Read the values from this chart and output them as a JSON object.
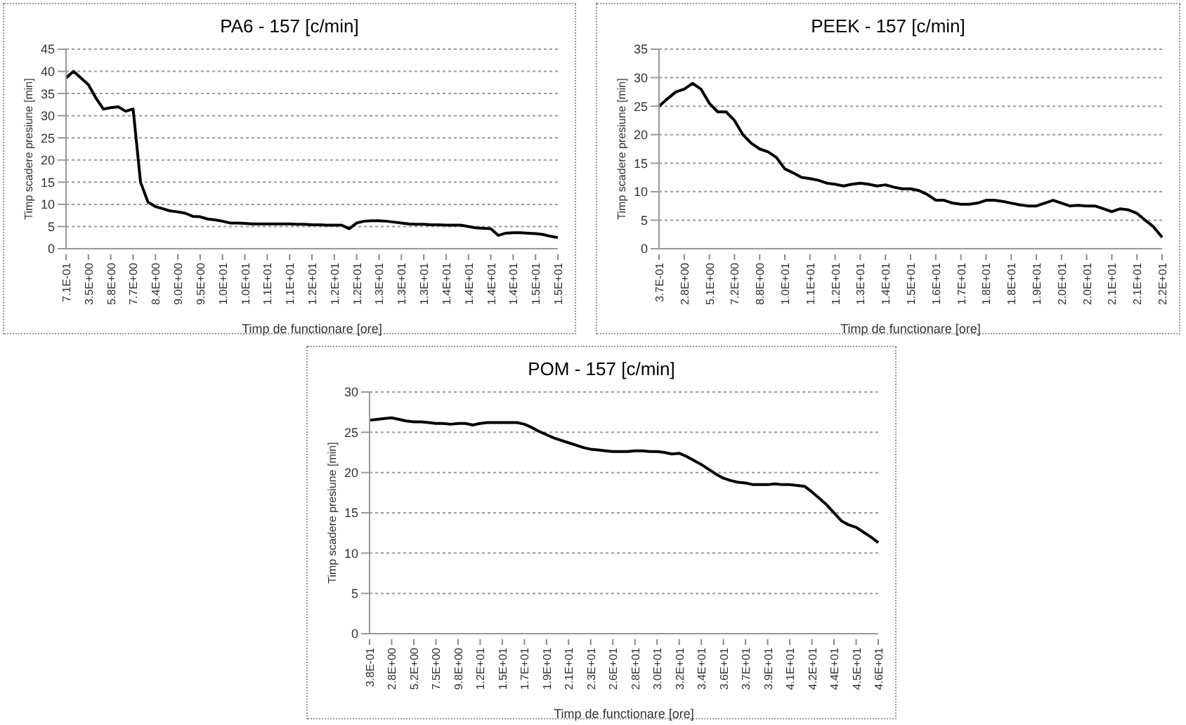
{
  "chart_data": [
    {
      "type": "line",
      "title": "PA6 - 157 [c/min]",
      "xlabel": "Timp de functionare [ore]",
      "ylabel": "Timp scadere presiune [min]",
      "categories": [
        "7.1E-01",
        null,
        null,
        "3.5E+00",
        null,
        null,
        "5.8E+00",
        null,
        null,
        "7.7E+00",
        null,
        null,
        "8.4E+00",
        null,
        null,
        "9.0E+00",
        null,
        null,
        "9.5E+00",
        null,
        null,
        "1.0E+01",
        null,
        null,
        "1.0E+01",
        null,
        null,
        "1.1E+01",
        null,
        null,
        "1.1E+01",
        null,
        null,
        "1.2E+01",
        null,
        null,
        "1.2E+01",
        null,
        null,
        "1.2E+01",
        null,
        null,
        "1.3E+01",
        null,
        null,
        "1.3E+01",
        null,
        null,
        "1.3E+01",
        null,
        null,
        "1.4E+01",
        null,
        null,
        "1.4E+01",
        null,
        null,
        "1.4E+01",
        null,
        null,
        "1.4E+01",
        null,
        null,
        "1.5E+01",
        null,
        null,
        "1.5E+01"
      ],
      "series": [
        {
          "color": "#000000",
          "values": [
            38.5,
            40,
            38.5,
            37,
            34,
            31.5,
            31.8,
            32,
            31,
            31.5,
            15,
            10.5,
            9.5,
            9,
            8.5,
            8.3,
            8,
            7.3,
            7.2,
            6.7,
            6.5,
            6.2,
            5.8,
            5.8,
            5.7,
            5.6,
            5.6,
            5.6,
            5.6,
            5.6,
            5.6,
            5.5,
            5.5,
            5.4,
            5.4,
            5.3,
            5.3,
            5.3,
            4.5,
            5.8,
            6.2,
            6.3,
            6.3,
            6.2,
            6,
            5.8,
            5.6,
            5.5,
            5.5,
            5.4,
            5.4,
            5.3,
            5.3,
            5.3,
            5,
            4.7,
            4.6,
            4.5,
            3,
            3.5,
            3.6,
            3.6,
            3.5,
            3.4,
            3.2,
            2.8,
            2.5
          ]
        }
      ],
      "ylim": [
        0,
        45
      ],
      "yticks": [
        0,
        5,
        10,
        15,
        20,
        25,
        30,
        35,
        40,
        45
      ],
      "grid": "y",
      "marker": "none",
      "line_style": "solid"
    },
    {
      "type": "line",
      "title": "PEEK - 157 [c/min]",
      "xlabel": "Timp de functionare [ore]",
      "ylabel": "Timp scadere presiune [min]",
      "categories": [
        "3.7E-01",
        null,
        null,
        "2.8E+00",
        null,
        null,
        "5.1E+00",
        null,
        null,
        "7.2E+00",
        null,
        null,
        "8.8E+00",
        null,
        null,
        "1.0E+01",
        null,
        null,
        "1.1E+01",
        null,
        null,
        "1.2E+01",
        null,
        null,
        "1.3E+01",
        null,
        null,
        "1.4E+01",
        null,
        null,
        "1.5E+01",
        null,
        null,
        "1.6E+01",
        null,
        null,
        "1.7E+01",
        null,
        null,
        "1.8E+01",
        null,
        null,
        "1.8E+01",
        null,
        null,
        "1.9E+01",
        null,
        null,
        "2.0E+01",
        null,
        null,
        "2.0E+01",
        null,
        null,
        "2.1E+01",
        null,
        null,
        "2.1E+01",
        null,
        null,
        "2.2E+01"
      ],
      "series": [
        {
          "color": "#000000",
          "values": [
            25,
            26.3,
            27.5,
            28,
            29,
            28,
            25.5,
            24,
            24,
            22.5,
            20,
            18.5,
            17.5,
            17,
            16,
            14,
            13.3,
            12.5,
            12.3,
            12,
            11.5,
            11.3,
            11,
            11.3,
            11.5,
            11.3,
            11,
            11.2,
            10.8,
            10.5,
            10.5,
            10.2,
            9.5,
            8.5,
            8.5,
            8,
            7.8,
            7.8,
            8,
            8.5,
            8.5,
            8.3,
            8,
            7.7,
            7.5,
            7.5,
            8,
            8.5,
            8,
            7.5,
            7.6,
            7.5,
            7.5,
            7,
            6.5,
            7,
            6.8,
            6.2,
            5,
            3.8,
            2
          ]
        }
      ],
      "ylim": [
        0,
        35
      ],
      "yticks": [
        0,
        5,
        10,
        15,
        20,
        25,
        30,
        35
      ],
      "grid": "y",
      "marker": "none",
      "line_style": "solid"
    },
    {
      "type": "line",
      "title": "POM - 157 [c/min]",
      "xlabel": "Timp de functionare [ore]",
      "ylabel": "Timp scadere presiune [min]",
      "categories": [
        "3.8E-01",
        null,
        null,
        "2.8E+00",
        null,
        null,
        "5.2E+00",
        null,
        null,
        "7.5E+00",
        null,
        null,
        "9.8E+00",
        null,
        null,
        "1.2E+01",
        null,
        null,
        "1.5E+01",
        null,
        null,
        "1.7E+01",
        null,
        null,
        "1.9E+01",
        null,
        null,
        "2.1E+01",
        null,
        null,
        "2.3E+01",
        null,
        null,
        "2.6E+01",
        null,
        null,
        "2.8E+01",
        null,
        null,
        "3.0E+01",
        null,
        null,
        "3.2E+01",
        null,
        null,
        "3.4E+01",
        null,
        null,
        "3.6E+01",
        null,
        null,
        "3.7E+01",
        null,
        null,
        "3.9E+01",
        null,
        null,
        "4.1E+01",
        null,
        null,
        "4.2E+01",
        null,
        null,
        "4.4E+01",
        null,
        null,
        "4.5E+01",
        null,
        null,
        "4.6E+01"
      ],
      "series": [
        {
          "color": "#000000",
          "values": [
            26.5,
            26.6,
            26.7,
            26.8,
            26.6,
            26.4,
            26.3,
            26.3,
            26.2,
            26.1,
            26.1,
            26,
            26.1,
            26.1,
            25.9,
            26.1,
            26.2,
            26.2,
            26.2,
            26.2,
            26.2,
            26,
            25.6,
            25.1,
            24.7,
            24.3,
            24,
            23.7,
            23.4,
            23.1,
            22.9,
            22.8,
            22.7,
            22.6,
            22.6,
            22.6,
            22.7,
            22.7,
            22.6,
            22.6,
            22.5,
            22.3,
            22.4,
            22,
            21.5,
            21,
            20.4,
            19.8,
            19.3,
            19,
            18.8,
            18.7,
            18.5,
            18.5,
            18.5,
            18.6,
            18.5,
            18.5,
            18.4,
            18.3,
            17.6,
            16.8,
            16,
            15,
            14,
            13.5,
            13.2,
            12.6,
            12,
            11.3
          ]
        }
      ],
      "ylim": [
        0,
        30
      ],
      "yticks": [
        0,
        5,
        10,
        15,
        20,
        25,
        30
      ],
      "grid": "y",
      "marker": "none",
      "line_style": "solid"
    }
  ]
}
